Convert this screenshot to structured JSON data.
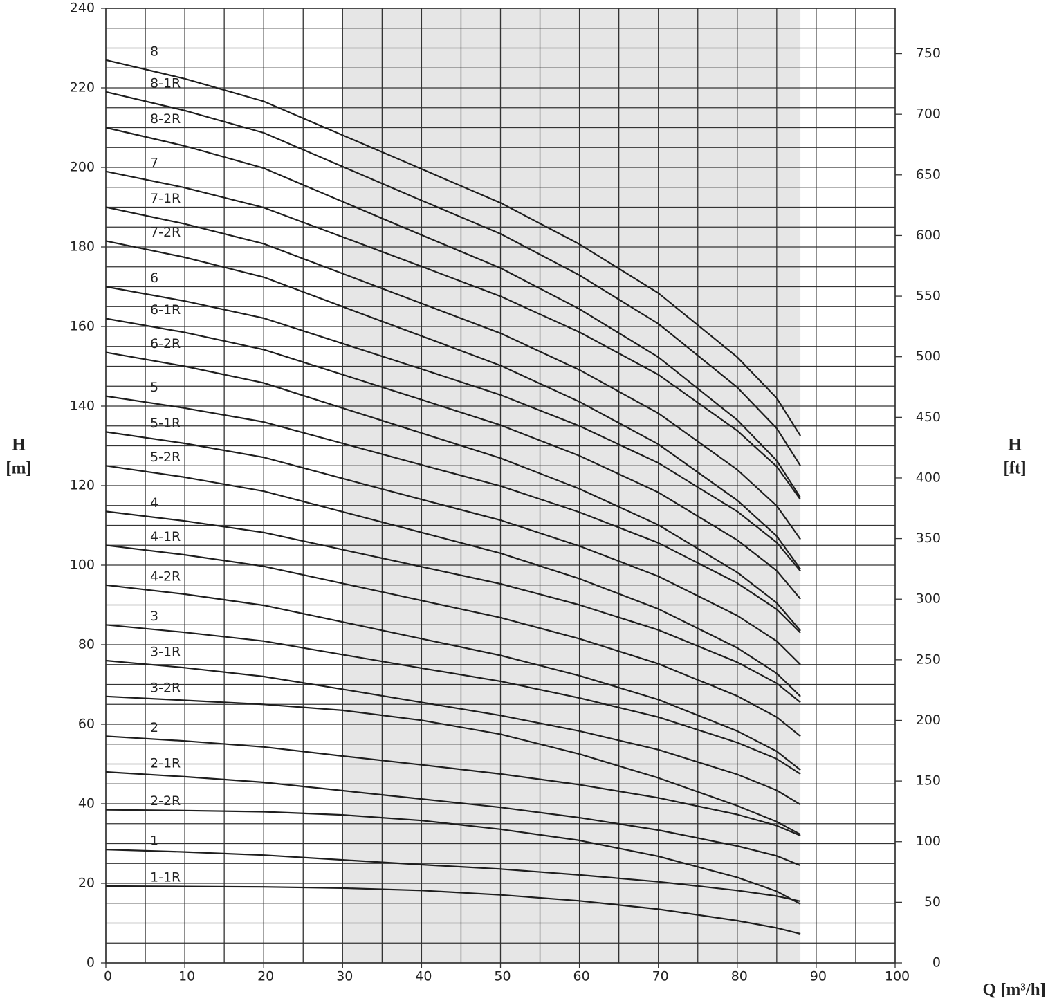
{
  "chart_data": {
    "type": "line",
    "xlabel": "Q [m³/h]",
    "ylabel": [
      "H",
      "[m]"
    ],
    "y2label": [
      "H",
      "[ft]"
    ],
    "xlim": [
      0,
      100
    ],
    "ylim": [
      0,
      240
    ],
    "y2lim": [
      0,
      787.4
    ],
    "xticks": [
      0,
      10,
      20,
      30,
      40,
      50,
      60,
      70,
      80,
      90,
      100
    ],
    "yticks": [
      0,
      20,
      40,
      60,
      80,
      100,
      120,
      140,
      160,
      180,
      200,
      220,
      240
    ],
    "y2ticks": [
      0,
      50,
      100,
      150,
      200,
      250,
      300,
      350,
      400,
      450,
      500,
      550,
      600,
      650,
      700,
      750
    ],
    "xgrid": [
      0,
      5,
      10,
      15,
      20,
      25,
      30,
      35,
      40,
      45,
      50,
      55,
      60,
      65,
      70,
      75,
      80,
      85,
      90,
      95,
      100
    ],
    "ygrid": [
      0,
      5,
      10,
      15,
      20,
      25,
      30,
      35,
      40,
      45,
      50,
      55,
      60,
      65,
      70,
      75,
      80,
      85,
      90,
      95,
      100,
      105,
      110,
      115,
      120,
      125,
      130,
      135,
      140,
      145,
      150,
      155,
      160,
      165,
      170,
      175,
      180,
      185,
      190,
      195,
      200,
      205,
      210,
      215,
      220,
      225,
      230,
      235,
      240
    ],
    "shaded_xrange": [
      30,
      88
    ],
    "shade_color": "#e6e6e6",
    "grid_color": "#333333",
    "line_color": "#1e1e1e",
    "x": [
      0,
      10,
      20,
      30,
      40,
      50,
      60,
      70,
      80,
      85,
      88
    ],
    "series": [
      {
        "name": "8",
        "values": [
          227,
          222.3,
          216.6,
          208.1,
          199.6,
          191.1,
          180.7,
          168.4,
          152.3,
          142.0,
          132.5
        ]
      },
      {
        "name": "8-1R",
        "values": [
          219,
          214.3,
          208.7,
          200.2,
          191.7,
          183.3,
          172.9,
          160.7,
          144.7,
          134.4,
          125
        ]
      },
      {
        "name": "8-2R",
        "values": [
          210,
          205.4,
          199.8,
          191.4,
          183.0,
          174.7,
          164.4,
          152.3,
          136.5,
          126.3,
          117
        ]
      },
      {
        "name": "7",
        "values": [
          199,
          194.9,
          189.9,
          182.5,
          175.1,
          167.6,
          158.6,
          147.9,
          133.8,
          124.8,
          116.5
        ]
      },
      {
        "name": "7-1R",
        "values": [
          190,
          185.8,
          180.8,
          173.3,
          165.8,
          158.3,
          149.1,
          138.2,
          124.0,
          114.9,
          106.5
        ]
      },
      {
        "name": "7-2R",
        "values": [
          181.5,
          177.4,
          172.4,
          165.0,
          157.6,
          150.2,
          141.1,
          130.4,
          116.3,
          107.3,
          99
        ]
      },
      {
        "name": "6",
        "values": [
          170,
          166.4,
          162.1,
          155.7,
          149.3,
          142.8,
          135.0,
          125.7,
          113.5,
          105.7,
          98.5
        ]
      },
      {
        "name": "6-1R",
        "values": [
          162,
          158.5,
          154.2,
          147.9,
          141.6,
          135.2,
          127.5,
          118.3,
          106.3,
          98.6,
          91.5
        ]
      },
      {
        "name": "6-2R",
        "values": [
          153.5,
          150.0,
          145.8,
          139.5,
          133.2,
          126.9,
          119.2,
          110.1,
          98.2,
          90.5,
          83.5
        ]
      },
      {
        "name": "5",
        "values": [
          142.5,
          139.5,
          136.0,
          130.6,
          125.2,
          119.9,
          113.3,
          105.6,
          95.5,
          88.9,
          83
        ]
      },
      {
        "name": "5-1R",
        "values": [
          133.5,
          130.6,
          127.1,
          121.8,
          116.5,
          111.3,
          104.8,
          97.2,
          87.3,
          80.9,
          75
        ]
      },
      {
        "name": "5-2R",
        "values": [
          125,
          122.1,
          118.6,
          113.4,
          108.2,
          103.0,
          96.6,
          89.0,
          79.2,
          72.8,
          67
        ]
      },
      {
        "name": "4",
        "values": [
          113.5,
          111.1,
          108.2,
          103.9,
          99.6,
          95.3,
          90.0,
          83.7,
          75.6,
          70.3,
          65.5
        ]
      },
      {
        "name": "4-1R",
        "values": [
          105,
          102.6,
          99.7,
          95.4,
          91.1,
          86.8,
          81.5,
          75.2,
          67.1,
          61.8,
          57
        ]
      },
      {
        "name": "4-2R",
        "values": [
          95,
          92.7,
          89.9,
          85.7,
          81.5,
          77.3,
          72.2,
          66.2,
          58.3,
          53.2,
          48.5
        ]
      },
      {
        "name": "3",
        "values": [
          85,
          83.1,
          80.9,
          77.5,
          74.1,
          70.8,
          66.6,
          61.8,
          55.4,
          51.3,
          47.5
        ]
      },
      {
        "name": "3-1R",
        "values": [
          76,
          74.2,
          72.0,
          68.8,
          65.5,
          62.2,
          58.3,
          53.6,
          47.4,
          43.4,
          39.8
        ]
      },
      {
        "name": "3-2R",
        "values": [
          67,
          66,
          65,
          63.5,
          61,
          57.5,
          52.5,
          46.5,
          39.5,
          35.5,
          32.3
        ]
      },
      {
        "name": "2",
        "values": [
          57,
          55.8,
          54.3,
          52.0,
          49.8,
          47.5,
          44.8,
          41.5,
          37.3,
          34.5,
          32
        ]
      },
      {
        "name": "2-1R",
        "values": [
          48,
          46.8,
          45.4,
          43.3,
          41.2,
          39.1,
          36.5,
          33.4,
          29.4,
          26.9,
          24.5
        ]
      },
      {
        "name": "2-2R",
        "values": [
          38.5,
          38.3,
          38,
          37.2,
          35.8,
          33.6,
          30.8,
          26.8,
          21.5,
          18,
          14.8
        ]
      },
      {
        "name": "1",
        "values": [
          28.5,
          27.9,
          27.1,
          25.9,
          24.7,
          23.6,
          22.1,
          20.4,
          18.2,
          16.8,
          15.5
        ]
      },
      {
        "name": "1-1R",
        "values": [
          19.3,
          19.2,
          19.1,
          18.8,
          18.2,
          17.1,
          15.6,
          13.5,
          10.6,
          8.8,
          7.3
        ]
      }
    ]
  }
}
